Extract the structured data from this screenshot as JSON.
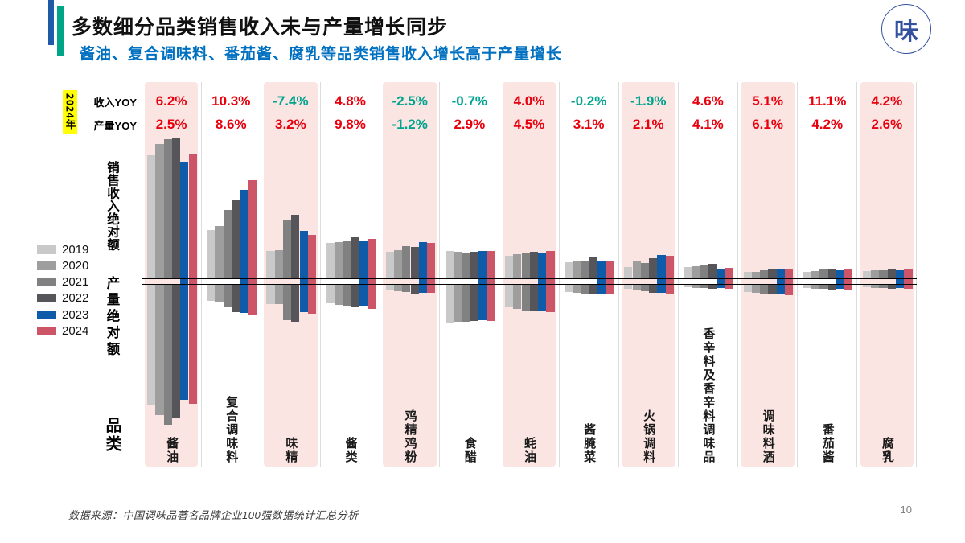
{
  "header": {
    "title": "多数细分品类销售收入未与产量增长同步",
    "subtitle": "酱油、复合调味料、番茄酱、腐乳等品类销售收入增长高于产量增长",
    "subtitle_color": "#0070c0",
    "accent_blue": "#1e5aa7",
    "accent_teal": "#00a587",
    "logo_char": "味"
  },
  "table": {
    "year_label": "2024年",
    "year_label_bg": "#ffff00",
    "revenue_row_label": "收入YOY",
    "production_row_label": "产量YOY"
  },
  "axis": {
    "revenue_label": "销售收入绝对额",
    "production_label": "产量绝对额",
    "category_label": "品类"
  },
  "footer": {
    "source": "数据来源：中国调味品著名品牌企业100强数据统计汇总分析",
    "page": "10"
  },
  "chart_data": {
    "type": "bar",
    "subtype": "diverging-grouped",
    "note": "Sales revenue absolute amount plotted upward, production absolute amount plotted downward; units are relative (no numeric axis shown in source), values estimated from bar lengths in px.",
    "years": [
      "2019",
      "2020",
      "2021",
      "2022",
      "2023",
      "2024"
    ],
    "year_colors": [
      "#c9c9c9",
      "#9e9e9e",
      "#818181",
      "#55555a",
      "#0d5ba9",
      "#cd5568"
    ],
    "categories": [
      "酱油",
      "复合调味料",
      "味精",
      "酱类",
      "鸡精鸡粉",
      "食醋",
      "蚝油",
      "酱腌菜",
      "火锅调料",
      "香辛料及香辛料调味品",
      "调味料酒",
      "番茄酱",
      "腐乳"
    ],
    "highlighted": [
      1,
      0,
      1,
      0,
      1,
      0,
      1,
      0,
      1,
      0,
      1,
      0,
      1
    ],
    "highlight_color": "#fbe5e2",
    "revenue_yoy": [
      "6.2%",
      "10.3%",
      "-7.4%",
      "4.8%",
      "-2.5%",
      "-0.7%",
      "4.0%",
      "-0.2%",
      "-1.9%",
      "4.6%",
      "5.1%",
      "11.1%",
      "4.2%"
    ],
    "production_yoy": [
      "2.5%",
      "8.6%",
      "3.2%",
      "9.8%",
      "-1.2%",
      "2.9%",
      "4.5%",
      "3.1%",
      "2.1%",
      "4.1%",
      "6.1%",
      "4.2%",
      "2.6%"
    ],
    "value_positive_color": "#e8000d",
    "value_negative_color": "#00a48e",
    "revenue_abs_up": [
      [
        153,
        167,
        173,
        174,
        144,
        154
      ],
      [
        60,
        65,
        85,
        98,
        110,
        122
      ],
      [
        34,
        35,
        73,
        79,
        59,
        54
      ],
      [
        44,
        45,
        46,
        52,
        47,
        49
      ],
      [
        33,
        35,
        40,
        39,
        45,
        44
      ],
      [
        34,
        33,
        32,
        33,
        34,
        34
      ],
      [
        28,
        30,
        31,
        33,
        32,
        34
      ],
      [
        20,
        21,
        22,
        26,
        21,
        21
      ],
      [
        14,
        22,
        19,
        25,
        29,
        28
      ],
      [
        14,
        15,
        17,
        18,
        12,
        13
      ],
      [
        8,
        8,
        10,
        12,
        11,
        12
      ],
      [
        8,
        9,
        11,
        11,
        10,
        11
      ],
      [
        9,
        10,
        10,
        11,
        10,
        11
      ]
    ],
    "production_abs_down": [
      [
        150,
        162,
        174,
        166,
        143,
        148
      ],
      [
        20,
        22,
        28,
        34,
        35,
        37
      ],
      [
        24,
        24,
        44,
        46,
        34,
        36
      ],
      [
        23,
        25,
        26,
        28,
        27,
        30
      ],
      [
        7,
        8,
        9,
        11,
        10,
        10
      ],
      [
        47,
        46,
        46,
        45,
        44,
        45
      ],
      [
        28,
        30,
        32,
        33,
        32,
        34
      ],
      [
        9,
        10,
        11,
        12,
        11,
        12
      ],
      [
        5,
        7,
        8,
        10,
        10,
        11
      ],
      [
        3,
        4,
        4,
        5,
        4,
        5
      ],
      [
        9,
        10,
        11,
        12,
        12,
        13
      ],
      [
        4,
        5,
        5,
        6,
        5,
        6
      ],
      [
        3,
        4,
        4,
        5,
        4,
        5
      ]
    ],
    "legend_position": "left",
    "grid": false
  }
}
